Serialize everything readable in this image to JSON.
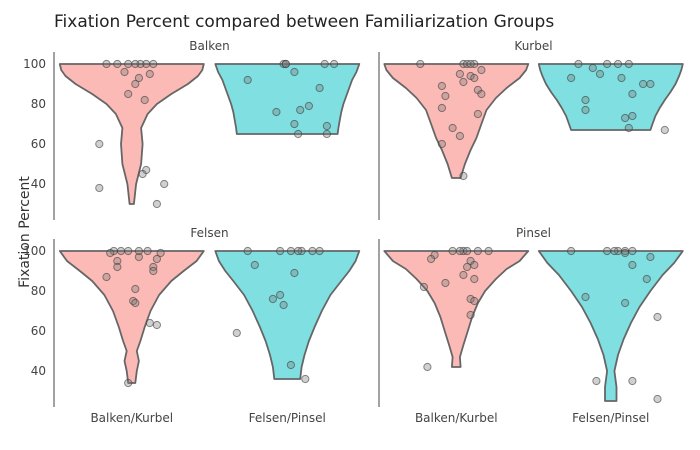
{
  "chart_data": {
    "type": "violin",
    "title": "Fixation Percent compared between Familiarization Groups",
    "ylabel": "Fixation Percent",
    "xlabel": "",
    "categories": [
      "Balken/Kurbel",
      "Felsen/Pinsel"
    ],
    "colors": {
      "Balken/Kurbel": "#f8766d",
      "Felsen/Pinsel": "#00bfc4"
    },
    "yticks": [
      40,
      60,
      80,
      100
    ],
    "grid": false,
    "facets": [
      {
        "name": "Balken",
        "ylim": [
          22,
          104
        ],
        "violins": [
          {
            "category": "Balken/Kurbel",
            "min": 30,
            "max": 100,
            "profile": [
              [
                30,
                0.03
              ],
              [
                40,
                0.06
              ],
              [
                50,
                0.13
              ],
              [
                60,
                0.15
              ],
              [
                68,
                0.13
              ],
              [
                75,
                0.22
              ],
              [
                80,
                0.35
              ],
              [
                85,
                0.55
              ],
              [
                90,
                0.78
              ],
              [
                94,
                0.92
              ],
              [
                97,
                0.98
              ],
              [
                100,
                1.0
              ]
            ],
            "points": [
              [
                0.2,
                100
              ],
              [
                -0.35,
                100
              ],
              [
                0.12,
                100
              ],
              [
                -0.05,
                100
              ],
              [
                0.25,
                95
              ],
              [
                0.05,
                90
              ],
              [
                0.18,
                82
              ],
              [
                -0.1,
                96
              ],
              [
                -0.05,
                85
              ],
              [
                -0.45,
                60
              ],
              [
                0.2,
                47
              ],
              [
                0.15,
                45
              ],
              [
                0.45,
                40
              ],
              [
                -0.45,
                38
              ],
              [
                0.35,
                30
              ],
              [
                0.3,
                100
              ],
              [
                -0.2,
                100
              ],
              [
                0.05,
                100
              ],
              [
                0.1,
                93
              ]
            ]
          },
          {
            "category": "Felsen/Pinsel",
            "min": 65,
            "max": 100,
            "profile": [
              [
                65,
                0.7
              ],
              [
                68,
                0.71
              ],
              [
                72,
                0.73
              ],
              [
                76,
                0.75
              ],
              [
                80,
                0.78
              ],
              [
                84,
                0.82
              ],
              [
                88,
                0.86
              ],
              [
                92,
                0.9
              ],
              [
                96,
                0.96
              ],
              [
                100,
                1.0
              ]
            ],
            "points": [
              [
                -0.05,
                100
              ],
              [
                -0.02,
                100
              ],
              [
                0.65,
                100
              ],
              [
                0.52,
                100
              ],
              [
                0.1,
                96
              ],
              [
                -0.55,
                92
              ],
              [
                0.45,
                88
              ],
              [
                0.3,
                79
              ],
              [
                0.18,
                77
              ],
              [
                -0.15,
                76
              ],
              [
                0.1,
                70
              ],
              [
                0.55,
                69
              ],
              [
                0.15,
                65
              ],
              [
                0.55,
                65
              ],
              [
                -0.02,
                100
              ]
            ]
          }
        ]
      },
      {
        "name": "Kurbel",
        "ylim": [
          22,
          104
        ],
        "violins": [
          {
            "category": "Balken/Kurbel",
            "min": 43,
            "max": 100,
            "profile": [
              [
                43,
                0.06
              ],
              [
                50,
                0.12
              ],
              [
                57,
                0.2
              ],
              [
                63,
                0.28
              ],
              [
                70,
                0.35
              ],
              [
                77,
                0.42
              ],
              [
                83,
                0.55
              ],
              [
                88,
                0.7
              ],
              [
                93,
                0.88
              ],
              [
                97,
                0.97
              ],
              [
                100,
                1.0
              ]
            ],
            "points": [
              [
                0.1,
                100
              ],
              [
                0.25,
                100
              ],
              [
                -0.5,
                100
              ],
              [
                0.15,
                100
              ],
              [
                0.35,
                97
              ],
              [
                0.05,
                95
              ],
              [
                0.2,
                94
              ],
              [
                0.25,
                93
              ],
              [
                0.1,
                91
              ],
              [
                -0.2,
                89
              ],
              [
                0.3,
                87
              ],
              [
                0.35,
                85
              ],
              [
                -0.15,
                84
              ],
              [
                -0.2,
                78
              ],
              [
                0.3,
                75
              ],
              [
                -0.05,
                68
              ],
              [
                0.05,
                64
              ],
              [
                -0.2,
                60
              ],
              [
                0.1,
                44
              ],
              [
                0.2,
                100
              ]
            ]
          },
          {
            "category": "Felsen/Pinsel",
            "min": 67,
            "max": 100,
            "profile": [
              [
                67,
                0.55
              ],
              [
                70,
                0.58
              ],
              [
                74,
                0.62
              ],
              [
                78,
                0.68
              ],
              [
                82,
                0.75
              ],
              [
                86,
                0.83
              ],
              [
                90,
                0.9
              ],
              [
                94,
                0.95
              ],
              [
                97,
                0.98
              ],
              [
                100,
                1.0
              ]
            ],
            "points": [
              [
                -0.45,
                100
              ],
              [
                -0.05,
                100
              ],
              [
                0.25,
                100
              ],
              [
                0.1,
                100
              ],
              [
                -0.25,
                98
              ],
              [
                -0.55,
                93
              ],
              [
                -0.15,
                95
              ],
              [
                0.15,
                93
              ],
              [
                0.55,
                90
              ],
              [
                0.45,
                90
              ],
              [
                0.3,
                85
              ],
              [
                -0.35,
                82
              ],
              [
                -0.35,
                77
              ],
              [
                0.3,
                74
              ],
              [
                0.2,
                73
              ],
              [
                0.25,
                68
              ],
              [
                0.75,
                67
              ]
            ]
          }
        ]
      },
      {
        "name": "Felsen",
        "ylim": [
          22,
          104
        ],
        "violins": [
          {
            "category": "Balken/Kurbel",
            "min": 34,
            "max": 100,
            "profile": [
              [
                34,
                0.05
              ],
              [
                40,
                0.07
              ],
              [
                45,
                0.1
              ],
              [
                50,
                0.07
              ],
              [
                55,
                0.12
              ],
              [
                62,
                0.18
              ],
              [
                70,
                0.26
              ],
              [
                78,
                0.38
              ],
              [
                85,
                0.55
              ],
              [
                90,
                0.72
              ],
              [
                95,
                0.9
              ],
              [
                100,
                1.0
              ]
            ],
            "points": [
              [
                -0.25,
                100
              ],
              [
                -0.05,
                100
              ],
              [
                0.22,
                100
              ],
              [
                0.4,
                99
              ],
              [
                -0.3,
                99
              ],
              [
                0.1,
                97
              ],
              [
                0.35,
                96
              ],
              [
                -0.2,
                95
              ],
              [
                -0.2,
                92
              ],
              [
                0.3,
                92
              ],
              [
                0.3,
                90
              ],
              [
                -0.35,
                87
              ],
              [
                0.05,
                81
              ],
              [
                0.02,
                75
              ],
              [
                0.05,
                74
              ],
              [
                0.25,
                64
              ],
              [
                0.35,
                63
              ],
              [
                -0.05,
                34
              ],
              [
                0.1,
                100
              ],
              [
                -0.15,
                100
              ]
            ]
          },
          {
            "category": "Felsen/Pinsel",
            "min": 36,
            "max": 100,
            "profile": [
              [
                36,
                0.18
              ],
              [
                42,
                0.2
              ],
              [
                48,
                0.24
              ],
              [
                55,
                0.3
              ],
              [
                62,
                0.38
              ],
              [
                70,
                0.48
              ],
              [
                78,
                0.6
              ],
              [
                85,
                0.75
              ],
              [
                90,
                0.86
              ],
              [
                95,
                0.95
              ],
              [
                100,
                1.0
              ]
            ],
            "points": [
              [
                -0.55,
                100
              ],
              [
                -0.1,
                100
              ],
              [
                0.05,
                100
              ],
              [
                0.35,
                100
              ],
              [
                0.45,
                100
              ],
              [
                0.2,
                100
              ],
              [
                -0.45,
                93
              ],
              [
                0.1,
                89
              ],
              [
                -0.1,
                78
              ],
              [
                -0.2,
                76
              ],
              [
                -0.05,
                73
              ],
              [
                -0.7,
                59
              ],
              [
                0.05,
                43
              ],
              [
                0.25,
                36
              ],
              [
                0.15,
                100
              ]
            ]
          }
        ]
      },
      {
        "name": "Pinsel",
        "ylim": [
          22,
          104
        ],
        "violins": [
          {
            "category": "Balken/Kurbel",
            "min": 42,
            "max": 100,
            "profile": [
              [
                42,
                0.06
              ],
              [
                47,
                0.05
              ],
              [
                53,
                0.1
              ],
              [
                60,
                0.16
              ],
              [
                67,
                0.22
              ],
              [
                74,
                0.3
              ],
              [
                80,
                0.4
              ],
              [
                86,
                0.55
              ],
              [
                91,
                0.7
              ],
              [
                95,
                0.88
              ],
              [
                100,
                1.0
              ]
            ],
            "points": [
              [
                -0.05,
                100
              ],
              [
                0.1,
                100
              ],
              [
                0.3,
                100
              ],
              [
                0.45,
                100
              ],
              [
                0.15,
                100
              ],
              [
                -0.3,
                98
              ],
              [
                -0.35,
                96
              ],
              [
                0.2,
                95
              ],
              [
                0.25,
                93
              ],
              [
                0.15,
                92
              ],
              [
                0.1,
                88
              ],
              [
                0.25,
                86
              ],
              [
                -0.15,
                84
              ],
              [
                -0.45,
                82
              ],
              [
                0.2,
                76
              ],
              [
                0.25,
                75
              ],
              [
                0.2,
                68
              ],
              [
                -0.4,
                42
              ],
              [
                0.05,
                100
              ]
            ]
          },
          {
            "category": "Felsen/Pinsel",
            "min": 25,
            "max": 100,
            "profile": [
              [
                25,
                0.08
              ],
              [
                32,
                0.08
              ],
              [
                40,
                0.05
              ],
              [
                48,
                0.1
              ],
              [
                56,
                0.18
              ],
              [
                64,
                0.28
              ],
              [
                72,
                0.4
              ],
              [
                80,
                0.55
              ],
              [
                88,
                0.72
              ],
              [
                94,
                0.88
              ],
              [
                100,
                1.0
              ]
            ],
            "points": [
              [
                -0.55,
                100
              ],
              [
                -0.05,
                100
              ],
              [
                0.1,
                100
              ],
              [
                0.2,
                100
              ],
              [
                0.3,
                100
              ],
              [
                0.2,
                99
              ],
              [
                0.55,
                97
              ],
              [
                0.3,
                93
              ],
              [
                0.5,
                86
              ],
              [
                -0.35,
                77
              ],
              [
                0.2,
                74
              ],
              [
                0.65,
                67
              ],
              [
                -0.2,
                35
              ],
              [
                0.3,
                35
              ],
              [
                0.65,
                26
              ],
              [
                0.05,
                100
              ]
            ]
          }
        ]
      }
    ]
  }
}
